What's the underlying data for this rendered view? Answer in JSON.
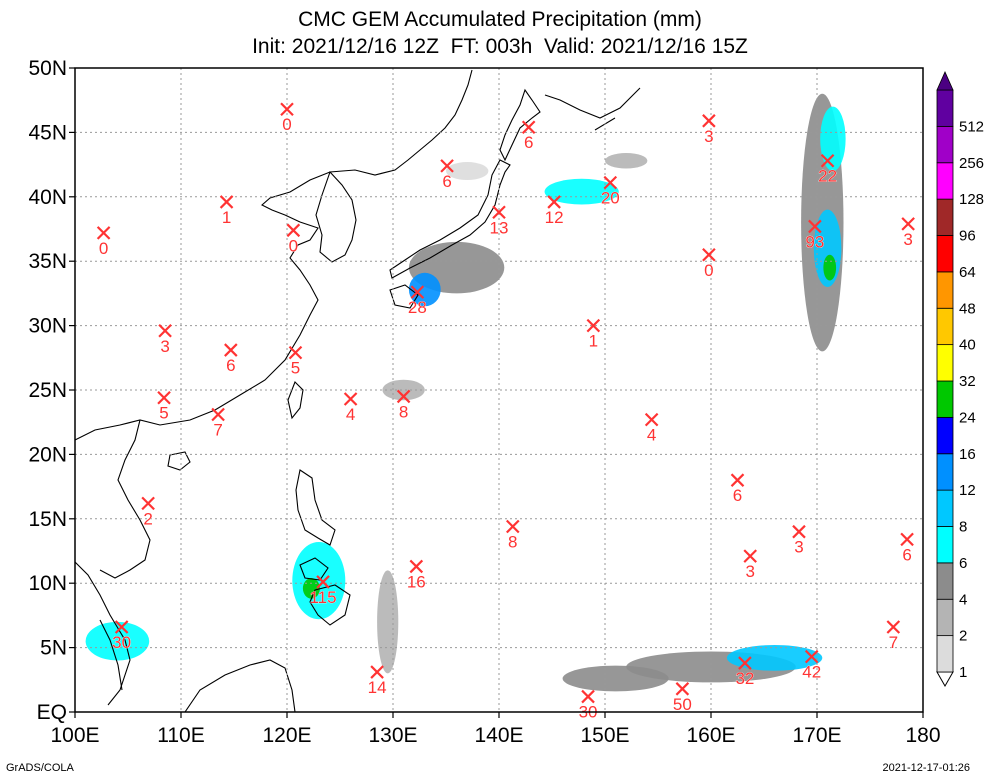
{
  "header": {
    "title": "CMC GEM Accumulated Precipitation (mm)",
    "subtitle": "Init: 2021/12/16 12Z  FT: 003h  Valid: 2021/12/16 15Z"
  },
  "footer": {
    "source": "GrADS/COLA",
    "timestamp": "2021-12-17-01:26"
  },
  "map": {
    "lon_range": [
      100,
      180
    ],
    "lat_range": [
      0,
      50
    ],
    "lat_labels": [
      "EQ",
      "5N",
      "10N",
      "15N",
      "20N",
      "25N",
      "30N",
      "35N",
      "40N",
      "45N",
      "50N"
    ],
    "lon_labels": [
      "100E",
      "110E",
      "120E",
      "130E",
      "140E",
      "150E",
      "160E",
      "170E",
      "180"
    ],
    "gridlines": "dotted",
    "marker_color": "#ff3333",
    "stations": [
      {
        "lon": 120.0,
        "lat": 46.8,
        "value": "0"
      },
      {
        "lon": 142.8,
        "lat": 45.4,
        "value": "6"
      },
      {
        "lon": 159.8,
        "lat": 45.9,
        "value": "3"
      },
      {
        "lon": 114.3,
        "lat": 39.6,
        "value": "1"
      },
      {
        "lon": 120.6,
        "lat": 37.4,
        "value": "0"
      },
      {
        "lon": 102.7,
        "lat": 37.2,
        "value": "0"
      },
      {
        "lon": 135.1,
        "lat": 42.4,
        "value": "6"
      },
      {
        "lon": 140.0,
        "lat": 38.8,
        "value": "13"
      },
      {
        "lon": 145.2,
        "lat": 39.6,
        "value": "12"
      },
      {
        "lon": 150.5,
        "lat": 41.1,
        "value": "20"
      },
      {
        "lon": 171.0,
        "lat": 42.8,
        "value": "22"
      },
      {
        "lon": 169.8,
        "lat": 37.7,
        "value": "93"
      },
      {
        "lon": 178.6,
        "lat": 37.9,
        "value": "3"
      },
      {
        "lon": 159.8,
        "lat": 35.5,
        "value": "0"
      },
      {
        "lon": 132.3,
        "lat": 32.6,
        "value": "28"
      },
      {
        "lon": 148.9,
        "lat": 30.0,
        "value": "1"
      },
      {
        "lon": 108.5,
        "lat": 29.6,
        "value": "3"
      },
      {
        "lon": 114.7,
        "lat": 28.1,
        "value": "6"
      },
      {
        "lon": 120.8,
        "lat": 27.9,
        "value": "5"
      },
      {
        "lon": 108.4,
        "lat": 24.4,
        "value": "5"
      },
      {
        "lon": 113.5,
        "lat": 23.1,
        "value": "7"
      },
      {
        "lon": 126.0,
        "lat": 24.3,
        "value": "4"
      },
      {
        "lon": 131.0,
        "lat": 24.5,
        "value": "8"
      },
      {
        "lon": 154.4,
        "lat": 22.7,
        "value": "4"
      },
      {
        "lon": 106.9,
        "lat": 16.2,
        "value": "2"
      },
      {
        "lon": 162.5,
        "lat": 18.0,
        "value": "6"
      },
      {
        "lon": 141.3,
        "lat": 14.4,
        "value": "8"
      },
      {
        "lon": 168.3,
        "lat": 14.0,
        "value": "3"
      },
      {
        "lon": 178.5,
        "lat": 13.4,
        "value": "6"
      },
      {
        "lon": 163.7,
        "lat": 12.1,
        "value": "3"
      },
      {
        "lon": 132.2,
        "lat": 11.3,
        "value": "16"
      },
      {
        "lon": 123.4,
        "lat": 10.1,
        "value": "115"
      },
      {
        "lon": 104.4,
        "lat": 6.6,
        "value": "30"
      },
      {
        "lon": 177.2,
        "lat": 6.6,
        "value": "7"
      },
      {
        "lon": 128.5,
        "lat": 3.1,
        "value": "14"
      },
      {
        "lon": 148.4,
        "lat": 1.2,
        "value": "30"
      },
      {
        "lon": 157.3,
        "lat": 1.8,
        "value": "50"
      },
      {
        "lon": 163.2,
        "lat": 3.8,
        "value": "32"
      },
      {
        "lon": 169.5,
        "lat": 4.3,
        "value": "42"
      }
    ],
    "precip_areas": [
      {
        "lon": 170.5,
        "lat": 38.0,
        "rlon": 2.0,
        "rlat": 10.0,
        "level": 4
      },
      {
        "lon": 171.0,
        "lat": 36.0,
        "rlon": 1.3,
        "rlat": 3.0,
        "level": 8
      },
      {
        "lon": 171.2,
        "lat": 34.5,
        "rlon": 0.6,
        "rlat": 1.0,
        "level": 24
      },
      {
        "lon": 171.5,
        "lat": 44.5,
        "rlon": 1.2,
        "rlat": 2.5,
        "level": 6
      },
      {
        "lon": 136.0,
        "lat": 34.5,
        "rlon": 4.5,
        "rlat": 2.0,
        "level": 4
      },
      {
        "lon": 133.0,
        "lat": 32.8,
        "rlon": 1.5,
        "rlat": 1.3,
        "level": 12
      },
      {
        "lon": 147.8,
        "lat": 40.4,
        "rlon": 3.5,
        "rlat": 1.0,
        "level": 6
      },
      {
        "lon": 123.0,
        "lat": 10.2,
        "rlon": 2.5,
        "rlat": 3.0,
        "level": 6
      },
      {
        "lon": 122.3,
        "lat": 9.6,
        "rlon": 0.8,
        "rlat": 0.8,
        "level": 24
      },
      {
        "lon": 104.0,
        "lat": 5.5,
        "rlon": 3.0,
        "rlat": 1.5,
        "level": 6
      },
      {
        "lon": 160.0,
        "lat": 3.5,
        "rlon": 8.0,
        "rlat": 1.2,
        "level": 4
      },
      {
        "lon": 166.0,
        "lat": 4.2,
        "rlon": 4.5,
        "rlat": 1.0,
        "level": 8
      },
      {
        "lon": 151.0,
        "lat": 2.6,
        "rlon": 5.0,
        "rlat": 1.0,
        "level": 4
      },
      {
        "lon": 129.5,
        "lat": 7.0,
        "rlon": 1.0,
        "rlat": 4.0,
        "level": 2
      },
      {
        "lon": 131.0,
        "lat": 25.0,
        "rlon": 2.0,
        "rlat": 0.8,
        "level": 2
      },
      {
        "lon": 152.0,
        "lat": 42.8,
        "rlon": 2.0,
        "rlat": 0.6,
        "level": 2
      },
      {
        "lon": 137.0,
        "lat": 42.0,
        "rlon": 2.0,
        "rlat": 0.7,
        "level": 1
      }
    ]
  },
  "colorbar": {
    "levels": [
      {
        "label": "1",
        "color": "#dcdcdc"
      },
      {
        "label": "2",
        "color": "#b4b4b4"
      },
      {
        "label": "4",
        "color": "#8c8c8c"
      },
      {
        "label": "6",
        "color": "#00ffff"
      },
      {
        "label": "8",
        "color": "#00c8ff"
      },
      {
        "label": "12",
        "color": "#0090ff"
      },
      {
        "label": "16",
        "color": "#0000ff"
      },
      {
        "label": "24",
        "color": "#00c800"
      },
      {
        "label": "32",
        "color": "#ffff00"
      },
      {
        "label": "40",
        "color": "#ffc800"
      },
      {
        "label": "48",
        "color": "#ff9600"
      },
      {
        "label": "64",
        "color": "#ff0000"
      },
      {
        "label": "96",
        "color": "#a02828"
      },
      {
        "label": "128",
        "color": "#ff00ff"
      },
      {
        "label": "256",
        "color": "#a000c8"
      },
      {
        "label": "512",
        "color": "#6000a0"
      }
    ],
    "top_color": "#4b0082"
  }
}
